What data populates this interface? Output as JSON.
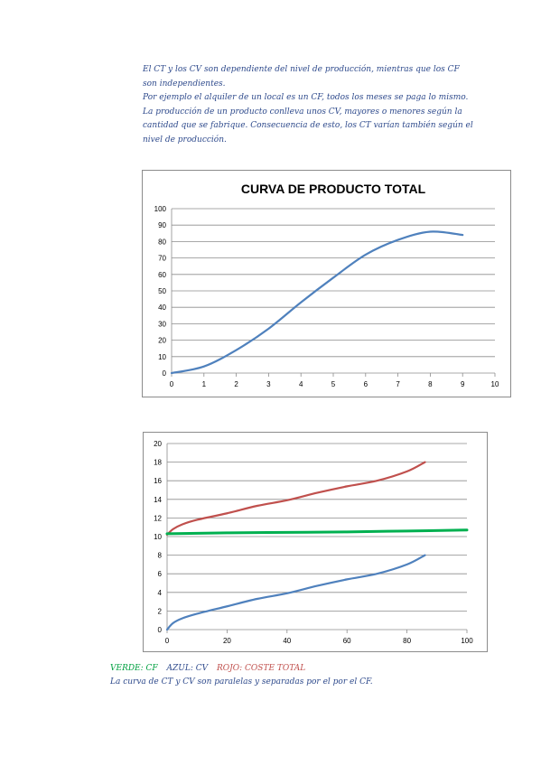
{
  "intro": {
    "lines": [
      "El CT y los CV son dependiente del nivel de producción, mientras que los CF",
      "son independientes.",
      "Por ejemplo el alquiler de un local es un CF, todos los meses se paga lo mismo.",
      "La producción de un producto conlleva unos CV, mayores o menores según la",
      "cantidad que se fabrique. Consecuencia de esto, los CT varían también según el",
      "nivel de producción."
    ]
  },
  "chart_data": [
    {
      "type": "line",
      "title": "CURVA DE PRODUCTO TOTAL",
      "xlim": [
        0,
        10
      ],
      "ylim": [
        0,
        100
      ],
      "xticks": [
        "0",
        "1",
        "2",
        "3",
        "4",
        "5",
        "6",
        "7",
        "8",
        "9",
        "10"
      ],
      "yticks": [
        "0",
        "10",
        "20",
        "30",
        "40",
        "50",
        "60",
        "70",
        "80",
        "90",
        "100"
      ],
      "grid": "horizontal",
      "series": [
        {
          "color": "#4f81bd",
          "x": [
            0,
            1,
            2,
            3,
            4,
            5,
            6,
            7,
            8,
            9
          ],
          "y": [
            0,
            4,
            14,
            27,
            43,
            58,
            72,
            81,
            86,
            84
          ]
        }
      ]
    },
    {
      "type": "line",
      "xlim": [
        0,
        100
      ],
      "ylim": [
        0,
        20
      ],
      "xticks": [
        "0",
        "20",
        "40",
        "60",
        "80",
        "100"
      ],
      "yticks": [
        "0",
        "2",
        "4",
        "6",
        "8",
        "10",
        "12",
        "14",
        "16",
        "18",
        "20"
      ],
      "grid": "horizontal",
      "series": [
        {
          "color": "#c0504d",
          "x": [
            0,
            2,
            5,
            10,
            20,
            30,
            40,
            50,
            60,
            70,
            80,
            86
          ],
          "y": [
            10.2,
            10.8,
            11.3,
            11.8,
            12.5,
            13.3,
            13.9,
            14.7,
            15.4,
            16.0,
            17.0,
            18.0
          ]
        },
        {
          "color": "#00b050",
          "width": 3,
          "x": [
            0,
            20,
            40,
            60,
            80,
            100
          ],
          "y": [
            10.3,
            10.4,
            10.45,
            10.5,
            10.6,
            10.7
          ]
        },
        {
          "color": "#4f81bd",
          "x": [
            0,
            2,
            5,
            10,
            20,
            30,
            40,
            50,
            60,
            70,
            80,
            86
          ],
          "y": [
            0,
            0.7,
            1.2,
            1.7,
            2.5,
            3.3,
            3.9,
            4.7,
            5.4,
            6.0,
            7.0,
            8.0
          ]
        }
      ]
    }
  ],
  "legend": {
    "verde": "VERDE: CF",
    "azul": "AZUL: CV",
    "rojo": "ROJO: COSTE TOTAL",
    "verde_color": "#00a040",
    "azul_color": "#2e4a8c",
    "rojo_color": "#c0504d"
  },
  "note": "La curva de CT y CV son paralelas y separadas por el por el CF."
}
